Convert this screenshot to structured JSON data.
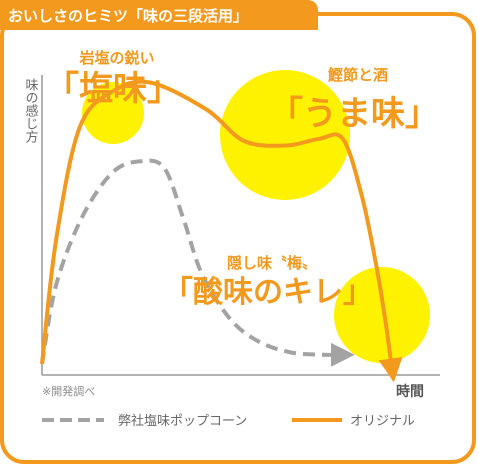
{
  "header": {
    "title": "おいしさのヒミツ「味の三段活用」"
  },
  "colors": {
    "accent": "#f39a1e",
    "highlight": "#fff200",
    "comparison": "#a3a3a3",
    "panel_border": "#f39a1e"
  },
  "chart_data": {
    "type": "line",
    "ylabel": "味の感じ方",
    "xlabel": "時間",
    "note": "※開発調べ",
    "series": [
      {
        "name": "弊社塩味ポップコーン",
        "style": "dashed",
        "color": "#a3a3a3",
        "x": [
          0,
          0.3,
          0.85,
          1.5,
          2.1,
          2.6,
          3.0,
          3.4,
          4.0,
          4.6,
          5.3,
          6.0,
          6.4
        ],
        "y": [
          0.5,
          4.0,
          7.0,
          9.0,
          9.5,
          9.2,
          7.0,
          4.5,
          2.5,
          1.5,
          1.0,
          0.9,
          0.9
        ]
      },
      {
        "name": "オリジナル",
        "style": "solid",
        "color": "#f39a1e",
        "x": [
          0,
          0.3,
          0.8,
          1.5,
          2.3,
          3.5,
          4.3,
          5.2,
          5.9,
          6.4,
          6.8,
          7.1,
          7.3,
          7.45
        ],
        "y": [
          0.5,
          6.0,
          11.0,
          12.6,
          13.0,
          11.8,
          10.4,
          10.2,
          10.5,
          10.5,
          8.0,
          5.0,
          2.5,
          0.2
        ]
      }
    ],
    "annotations": [
      {
        "id": "salt",
        "subtitle": "岩塩の鋭い",
        "label": "「塩味」"
      },
      {
        "id": "umami",
        "subtitle": "鰹節と酒",
        "label": "「うま味」"
      },
      {
        "id": "kire",
        "subtitle": "隠し味〝梅〟",
        "label": "「酸味のキレ」"
      }
    ]
  }
}
